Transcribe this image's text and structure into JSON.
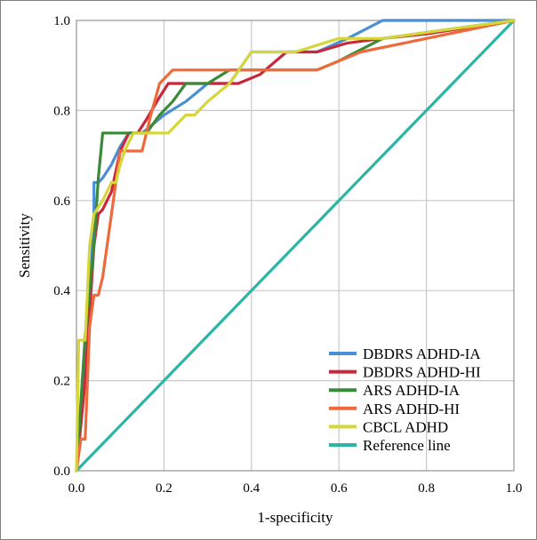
{
  "chart_data": {
    "type": "line",
    "title": "",
    "xlabel": "1-specificity",
    "ylabel": "Sensitivity",
    "xlim": [
      0,
      1
    ],
    "ylim": [
      0,
      1
    ],
    "xticks": [
      "0.0",
      "0.2",
      "0.4",
      "0.6",
      "0.8",
      "1.0"
    ],
    "yticks": [
      "0.0",
      "0.2",
      "0.4",
      "0.6",
      "0.8",
      "1.0"
    ],
    "grid": true,
    "legend_position": "bottom-right",
    "series": [
      {
        "name": "DBDRS ADHD-IA",
        "color": "#4a8ed4",
        "x": [
          0,
          0.02,
          0.03,
          0.04,
          0.04,
          0.05,
          0.06,
          0.08,
          0.1,
          0.12,
          0.15,
          0.2,
          0.25,
          0.3,
          0.35,
          0.4,
          0.45,
          0.55,
          0.62,
          0.7,
          1.0
        ],
        "y": [
          0,
          0.25,
          0.45,
          0.55,
          0.64,
          0.64,
          0.65,
          0.68,
          0.72,
          0.75,
          0.75,
          0.79,
          0.82,
          0.86,
          0.86,
          0.93,
          0.93,
          0.93,
          0.96,
          1.0,
          1.0
        ]
      },
      {
        "name": "DBDRS ADHD-HI",
        "color": "#c9283c",
        "x": [
          0,
          0.01,
          0.02,
          0.03,
          0.04,
          0.05,
          0.06,
          0.08,
          0.1,
          0.12,
          0.14,
          0.16,
          0.19,
          0.21,
          0.25,
          0.3,
          0.37,
          0.42,
          0.48,
          0.55,
          0.62,
          0.7,
          0.8,
          1.0
        ],
        "y": [
          0,
          0.1,
          0.2,
          0.35,
          0.5,
          0.57,
          0.58,
          0.62,
          0.71,
          0.75,
          0.75,
          0.78,
          0.83,
          0.86,
          0.86,
          0.86,
          0.86,
          0.88,
          0.93,
          0.93,
          0.95,
          0.96,
          0.97,
          1.0
        ]
      },
      {
        "name": "ARS ADHD-IA",
        "color": "#3a8a3a",
        "x": [
          0,
          0.02,
          0.04,
          0.05,
          0.06,
          0.07,
          0.1,
          0.13,
          0.16,
          0.19,
          0.22,
          0.25,
          0.3,
          0.35,
          0.55,
          0.6,
          0.7,
          1.0
        ],
        "y": [
          0,
          0.3,
          0.5,
          0.65,
          0.75,
          0.75,
          0.75,
          0.75,
          0.75,
          0.79,
          0.82,
          0.86,
          0.86,
          0.89,
          0.89,
          0.91,
          0.96,
          1.0
        ]
      },
      {
        "name": "ARS ADHD-HI",
        "color": "#ee6a3a",
        "x": [
          0,
          0.01,
          0.02,
          0.03,
          0.04,
          0.05,
          0.06,
          0.08,
          0.1,
          0.12,
          0.15,
          0.17,
          0.19,
          0.22,
          0.3,
          0.37,
          0.4,
          0.45,
          0.55,
          0.65,
          0.75,
          1.0
        ],
        "y": [
          0,
          0.07,
          0.07,
          0.32,
          0.39,
          0.39,
          0.43,
          0.57,
          0.71,
          0.71,
          0.71,
          0.79,
          0.86,
          0.89,
          0.89,
          0.89,
          0.89,
          0.89,
          0.89,
          0.93,
          0.95,
          1.0
        ]
      },
      {
        "name": "CBCL ADHD",
        "color": "#d6d63a",
        "x": [
          0,
          0.005,
          0.01,
          0.02,
          0.03,
          0.04,
          0.06,
          0.08,
          0.09,
          0.1,
          0.11,
          0.13,
          0.17,
          0.21,
          0.25,
          0.27,
          0.3,
          0.35,
          0.4,
          0.42,
          0.5,
          0.6,
          0.7,
          1.0
        ],
        "y": [
          0,
          0.29,
          0.29,
          0.29,
          0.5,
          0.57,
          0.6,
          0.64,
          0.64,
          0.68,
          0.71,
          0.75,
          0.75,
          0.75,
          0.79,
          0.79,
          0.82,
          0.86,
          0.93,
          0.93,
          0.93,
          0.96,
          0.96,
          1.0
        ]
      },
      {
        "name": "Reference line",
        "color": "#2ab5a5",
        "x": [
          0,
          1
        ],
        "y": [
          0,
          1
        ]
      }
    ]
  }
}
